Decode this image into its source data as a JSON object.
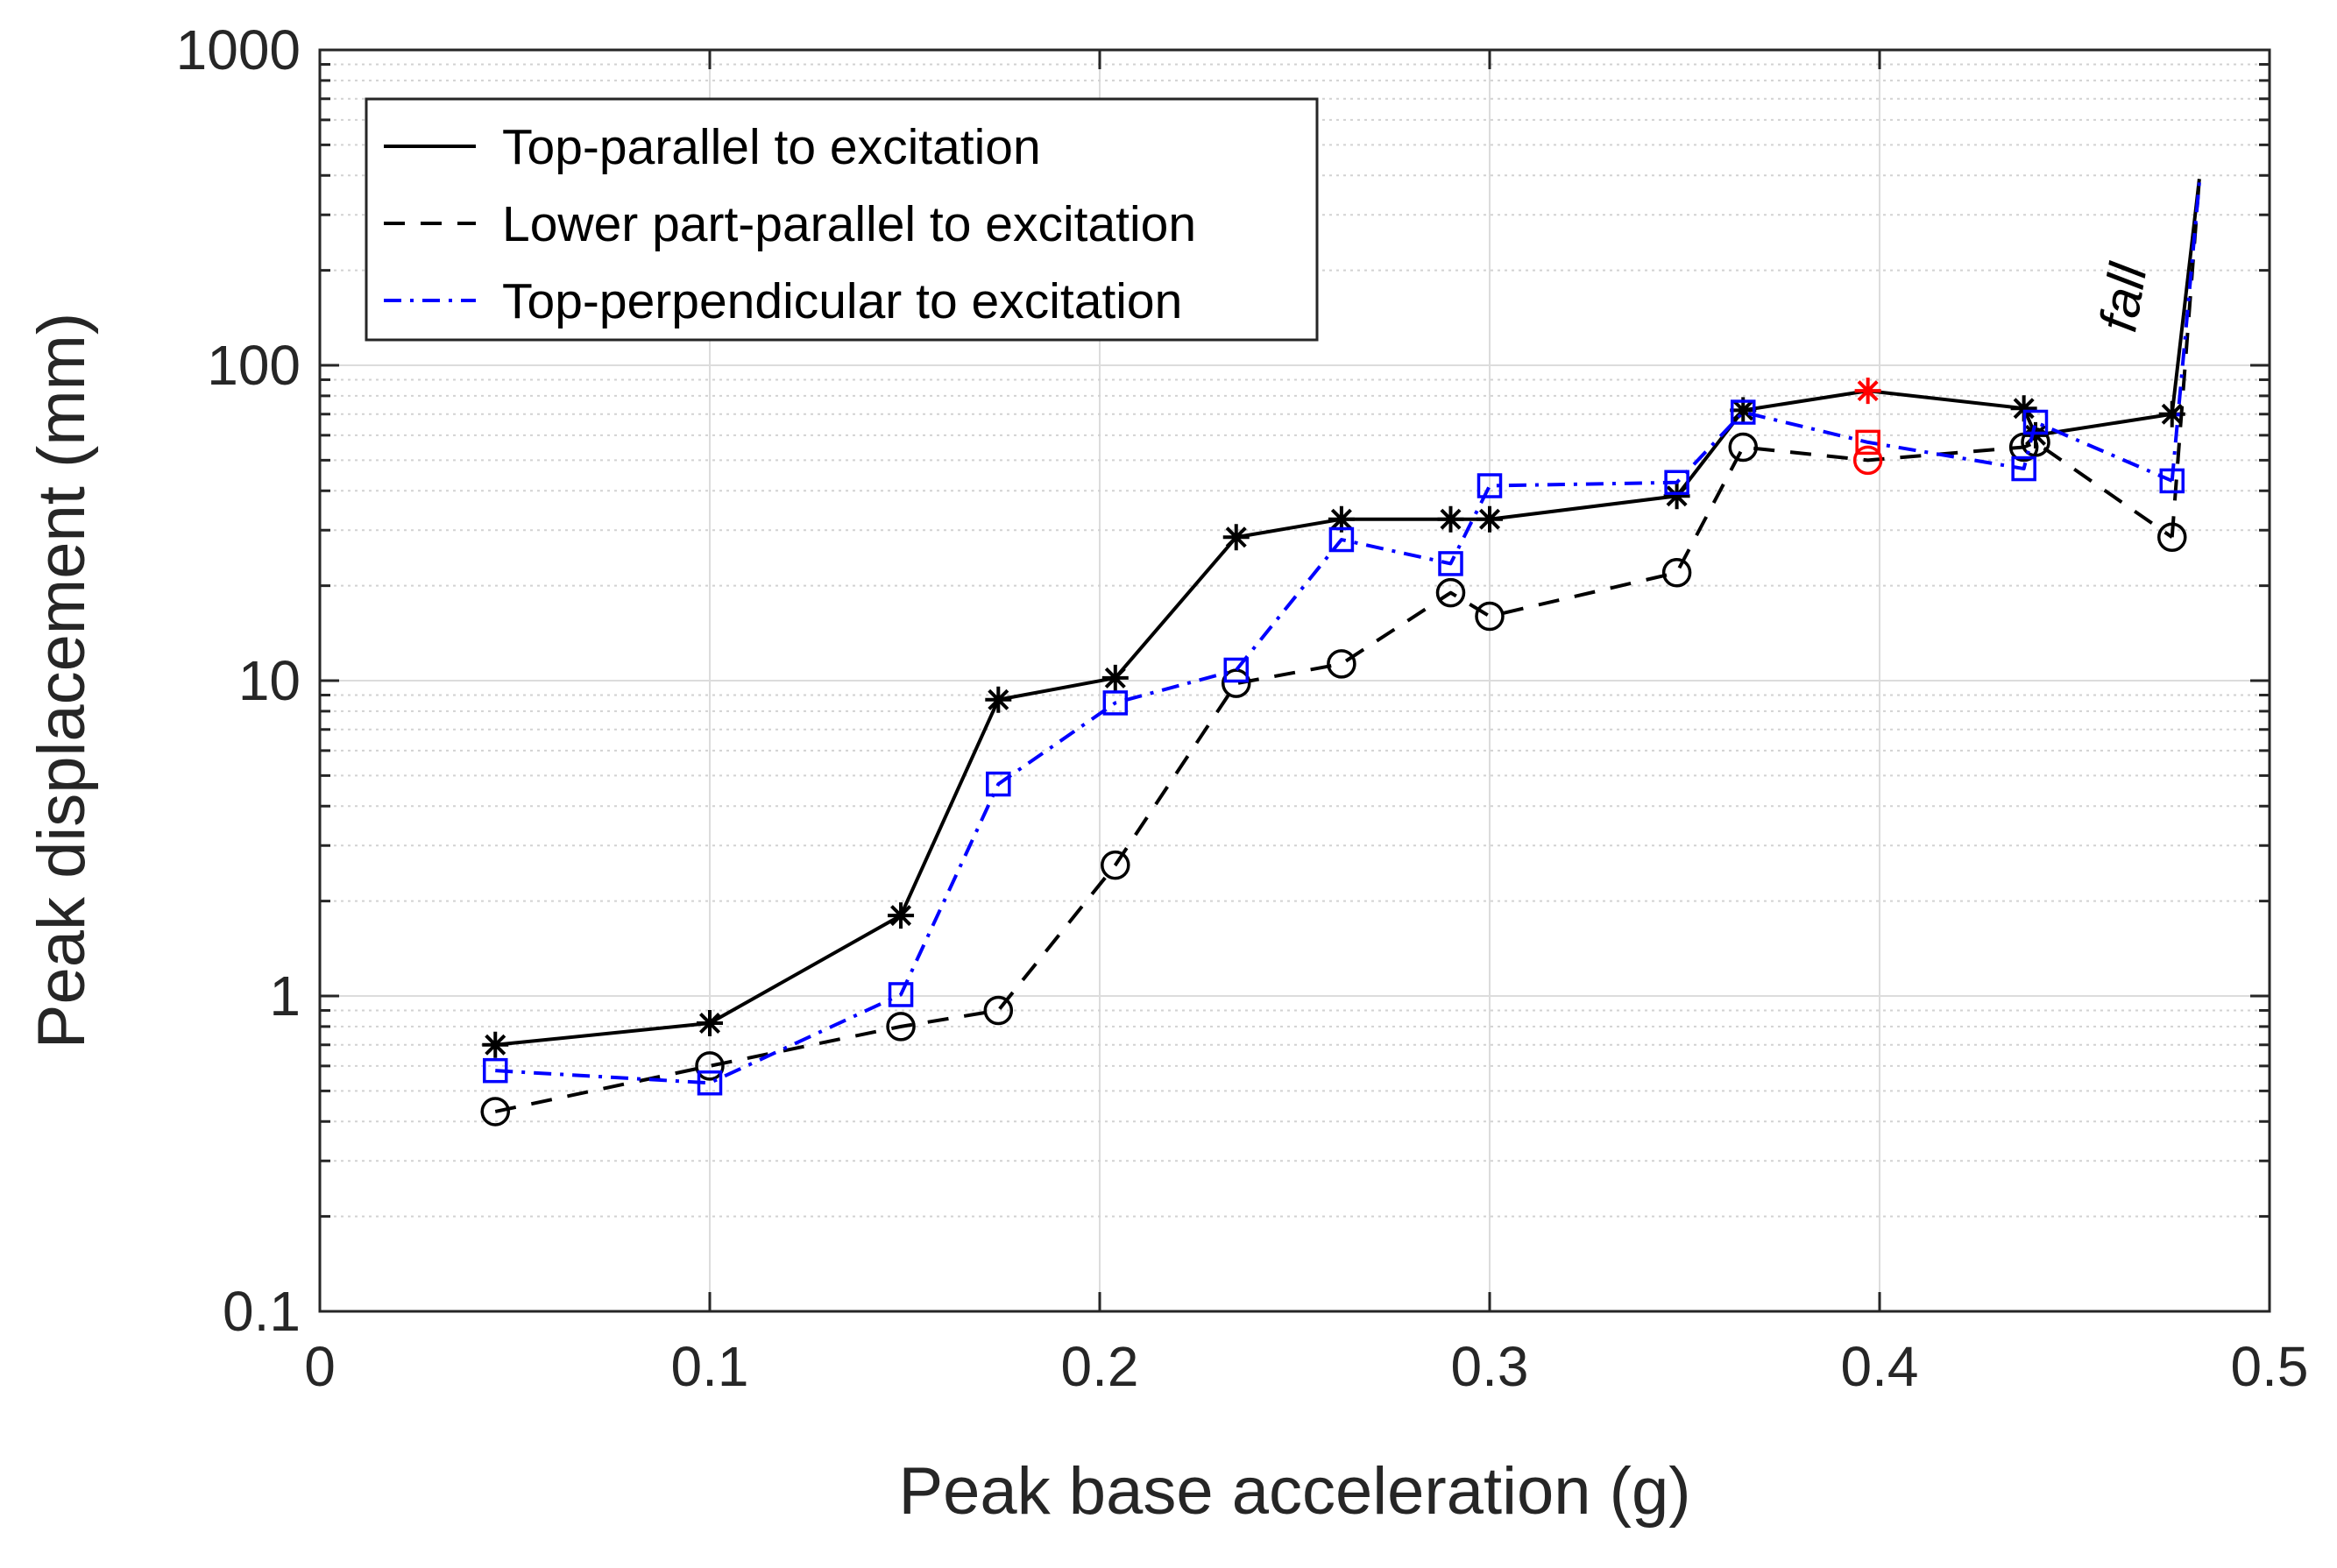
{
  "chart_data": {
    "type": "line",
    "title": "",
    "xlabel": "Peak base acceleration (g)",
    "ylabel": "Peak displacement (mm)",
    "xlim": [
      0,
      0.5
    ],
    "ylim": [
      0.1,
      1000
    ],
    "yscale": "log",
    "grid": true,
    "legend_position": "top-left",
    "x_ticks": [
      0,
      0.1,
      0.2,
      0.3,
      0.4,
      0.5
    ],
    "x_tick_labels": [
      "0",
      "0.1",
      "0.2",
      "0.3",
      "0.4",
      "0.5"
    ],
    "y_ticks": [
      0.1,
      1,
      10,
      100,
      1000
    ],
    "y_tick_labels": [
      "0.1",
      "1",
      "10",
      "100",
      "1000"
    ],
    "series": [
      {
        "name": "Top-parallel to excitation",
        "color": "#000000",
        "line_style": "solid",
        "marker": "asterisk",
        "x": [
          0.045,
          0.1,
          0.149,
          0.174,
          0.204,
          0.235,
          0.262,
          0.29,
          0.3,
          0.348,
          0.365,
          0.397,
          0.437,
          0.44,
          0.475
        ],
        "y": [
          0.7,
          0.82,
          1.8,
          8.7,
          10.2,
          28.5,
          32.5,
          32.5,
          32.5,
          38.5,
          72,
          83,
          73,
          60,
          70
        ],
        "tail": {
          "x": [
            0.475,
            0.482
          ],
          "y": [
            70,
            390
          ]
        },
        "highlight_index": 11,
        "highlight_color": "#ff0000"
      },
      {
        "name": "Lower part-parallel to excitation",
        "color": "#000000",
        "line_style": "dashed",
        "marker": "circle",
        "x": [
          0.045,
          0.1,
          0.149,
          0.174,
          0.204,
          0.235,
          0.262,
          0.29,
          0.3,
          0.348,
          0.365,
          0.397,
          0.437,
          0.44,
          0.475
        ],
        "y": [
          0.43,
          0.6,
          0.8,
          0.9,
          2.6,
          9.8,
          11.3,
          19,
          16,
          22,
          55,
          50,
          55,
          57,
          28.5
        ],
        "tail": {
          "x": [
            0.475,
            0.482
          ],
          "y": [
            28.5,
            390
          ]
        },
        "highlight_index": 11,
        "highlight_color": "#ff0000"
      },
      {
        "name": "Top-perpendicular to excitation",
        "color": "#0000ff",
        "line_style": "dashdot",
        "marker": "square",
        "x": [
          0.045,
          0.1,
          0.149,
          0.174,
          0.204,
          0.235,
          0.262,
          0.29,
          0.3,
          0.348,
          0.365,
          0.397,
          0.437,
          0.44,
          0.475
        ],
        "y": [
          0.58,
          0.53,
          1.01,
          4.7,
          8.5,
          10.8,
          28,
          23.5,
          41.5,
          42.5,
          71,
          57,
          47,
          66,
          43
        ],
        "tail": {
          "x": [
            0.475,
            0.482
          ],
          "y": [
            43,
            380
          ]
        },
        "highlight_index": 11,
        "highlight_color": "#ff0000"
      }
    ],
    "annotations": [
      {
        "text": "fall",
        "x": 0.467,
        "y": 160,
        "rotation": -80
      }
    ]
  }
}
